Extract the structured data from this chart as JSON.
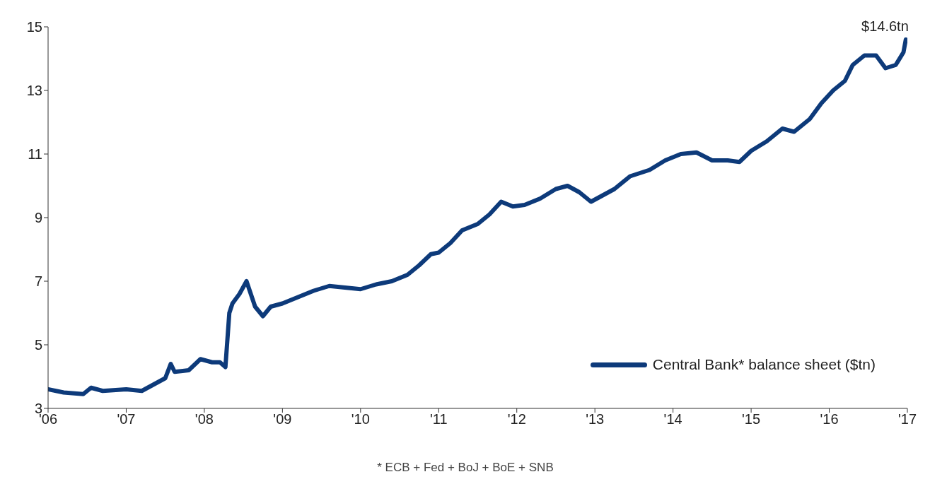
{
  "chart_data": {
    "type": "line",
    "x": [
      2006.0,
      2006.2,
      2006.45,
      2006.55,
      2006.7,
      2007.0,
      2007.2,
      2007.35,
      2007.5,
      2007.57,
      2007.62,
      2007.8,
      2007.95,
      2008.1,
      2008.2,
      2008.27,
      2008.32,
      2008.36,
      2008.45,
      2008.54,
      2008.65,
      2008.75,
      2008.85,
      2009.0,
      2009.2,
      2009.4,
      2009.6,
      2009.8,
      2010.0,
      2010.2,
      2010.4,
      2010.6,
      2010.75,
      2010.9,
      2011.0,
      2011.15,
      2011.3,
      2011.5,
      2011.65,
      2011.8,
      2011.95,
      2012.1,
      2012.3,
      2012.5,
      2012.65,
      2012.8,
      2012.95,
      2013.1,
      2013.25,
      2013.45,
      2013.7,
      2013.9,
      2014.1,
      2014.3,
      2014.5,
      2014.7,
      2014.85,
      2015.0,
      2015.2,
      2015.4,
      2015.55,
      2015.75,
      2015.9,
      2016.05,
      2016.2,
      2016.3,
      2016.45,
      2016.6,
      2016.72,
      2016.85,
      2016.95,
      2016.98
    ],
    "series": [
      {
        "name": "Central Bank* balance sheet ($tn)",
        "color": "#0d3a7a",
        "values": [
          3.6,
          3.5,
          3.45,
          3.65,
          3.55,
          3.6,
          3.55,
          3.75,
          3.95,
          4.4,
          4.15,
          4.2,
          4.55,
          4.45,
          4.45,
          4.3,
          6.0,
          6.3,
          6.6,
          7.0,
          6.2,
          5.9,
          6.2,
          6.3,
          6.5,
          6.7,
          6.85,
          6.8,
          6.75,
          6.9,
          7.0,
          7.2,
          7.5,
          7.85,
          7.9,
          8.2,
          8.6,
          8.8,
          9.1,
          9.5,
          9.35,
          9.4,
          9.6,
          9.9,
          10.0,
          9.8,
          9.5,
          9.7,
          9.9,
          10.3,
          10.5,
          10.8,
          11.0,
          11.05,
          10.8,
          10.8,
          10.75,
          11.1,
          11.4,
          11.8,
          11.7,
          12.1,
          12.6,
          13.0,
          13.3,
          13.8,
          14.1,
          14.1,
          13.7,
          13.8,
          14.2,
          14.6
        ]
      }
    ],
    "xlim": [
      2006,
      2017
    ],
    "xticks": [
      {
        "value": 2006,
        "label": "'06"
      },
      {
        "value": 2007,
        "label": "'07"
      },
      {
        "value": 2008,
        "label": "'08"
      },
      {
        "value": 2009,
        "label": "'09"
      },
      {
        "value": 2010,
        "label": "'10"
      },
      {
        "value": 2011,
        "label": "'11"
      },
      {
        "value": 2012,
        "label": "'12"
      },
      {
        "value": 2013,
        "label": "'13"
      },
      {
        "value": 2014,
        "label": "'14"
      },
      {
        "value": 2015,
        "label": "'15"
      },
      {
        "value": 2016,
        "label": "'16"
      },
      {
        "value": 2017,
        "label": "'17"
      }
    ],
    "ylim": [
      3,
      15
    ],
    "yticks": [
      3,
      5,
      7,
      9,
      11,
      13,
      15
    ],
    "grid": false,
    "legend": "bottom right",
    "marker": "none",
    "line_style": "solid",
    "annotations": [
      {
        "text": "$14.6tn",
        "x": 2016.98,
        "y": 14.6
      },
      "* ECB + Fed + BoJ + BoE + SNB"
    ]
  }
}
